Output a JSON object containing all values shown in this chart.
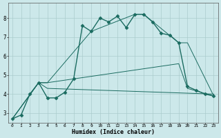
{
  "title": "",
  "xlabel": "Humidex (Indice chaleur)",
  "ylabel": "",
  "xlim": [
    -0.5,
    23.5
  ],
  "ylim": [
    2.5,
    8.8
  ],
  "xticks": [
    0,
    1,
    2,
    3,
    4,
    5,
    6,
    7,
    8,
    9,
    10,
    11,
    12,
    13,
    14,
    15,
    16,
    17,
    18,
    19,
    20,
    21,
    22,
    23
  ],
  "yticks": [
    3,
    4,
    5,
    6,
    7,
    8
  ],
  "bg_color": "#cce8ea",
  "line_color": "#1a6b60",
  "grid_color": "#aacccc",
  "lines": [
    {
      "x": [
        0,
        1,
        2,
        3,
        4,
        5,
        6,
        7,
        8,
        9,
        10,
        11,
        12,
        13,
        14,
        15,
        16,
        17,
        18,
        19,
        20,
        21,
        22,
        23
      ],
      "y": [
        2.7,
        2.9,
        4.0,
        4.6,
        3.8,
        3.8,
        4.1,
        4.8,
        7.6,
        7.3,
        8.0,
        7.8,
        8.1,
        7.5,
        8.2,
        8.2,
        7.8,
        7.2,
        7.1,
        6.7,
        4.4,
        4.2,
        4.0,
        3.9
      ],
      "marker": "D",
      "markersize": 2.5,
      "linestyle": "-",
      "linewidth": 1.0
    },
    {
      "x": [
        0,
        3,
        4,
        9,
        14,
        15,
        19,
        20,
        23
      ],
      "y": [
        2.7,
        4.6,
        4.6,
        7.3,
        8.2,
        8.2,
        6.7,
        6.7,
        3.9
      ],
      "marker": null,
      "markersize": 0,
      "linestyle": "-",
      "linewidth": 0.7
    },
    {
      "x": [
        0,
        3,
        4,
        19,
        20,
        23
      ],
      "y": [
        2.7,
        4.6,
        4.6,
        5.6,
        4.3,
        3.9
      ],
      "marker": null,
      "markersize": 0,
      "linestyle": "-",
      "linewidth": 0.7
    },
    {
      "x": [
        0,
        3,
        4,
        23
      ],
      "y": [
        2.7,
        4.6,
        4.3,
        4.0
      ],
      "marker": null,
      "markersize": 0,
      "linestyle": "-",
      "linewidth": 0.7
    }
  ]
}
